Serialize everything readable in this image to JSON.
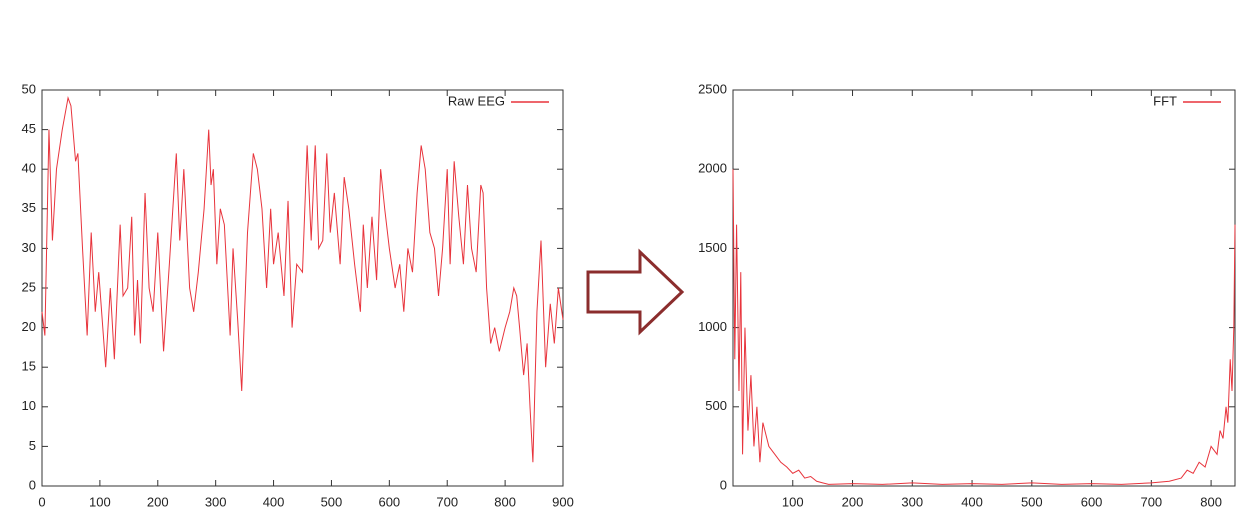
{
  "chart_data": [
    {
      "type": "line",
      "x": [
        0,
        5,
        12,
        18,
        25,
        35,
        45,
        50,
        58,
        62,
        70,
        78,
        85,
        92,
        98,
        105,
        110,
        118,
        125,
        135,
        140,
        148,
        155,
        160,
        165,
        170,
        178,
        185,
        192,
        200,
        210,
        220,
        232,
        238,
        245,
        255,
        262,
        270,
        280,
        288,
        292,
        296,
        302,
        308,
        315,
        325,
        330,
        338,
        345,
        355,
        365,
        372,
        380,
        388,
        395,
        400,
        408,
        418,
        425,
        432,
        440,
        450,
        458,
        465,
        472,
        478,
        485,
        492,
        498,
        505,
        515,
        522,
        530,
        540,
        550,
        555,
        562,
        570,
        578,
        585,
        592,
        600,
        610,
        618,
        625,
        632,
        640,
        648,
        655,
        662,
        670,
        678,
        685,
        692,
        700,
        705,
        712,
        720,
        728,
        735,
        742,
        750,
        758,
        762,
        768,
        775,
        782,
        790,
        800,
        808,
        815,
        820,
        825,
        832,
        838,
        843,
        848,
        855,
        862,
        870,
        878,
        885,
        892,
        900
      ],
      "series": [
        {
          "name": "Raw EEG",
          "color": "#e8343c",
          "values": [
            22,
            19,
            45,
            31,
            40,
            45,
            49,
            48,
            41,
            42,
            30,
            19,
            32,
            22,
            27,
            20,
            15,
            25,
            16,
            33,
            24,
            25,
            34,
            19,
            26,
            18,
            37,
            25,
            22,
            32,
            17,
            28,
            42,
            31,
            40,
            25,
            22,
            27,
            35,
            45,
            38,
            40,
            28,
            35,
            33,
            19,
            30,
            21,
            12,
            32,
            42,
            40,
            35,
            25,
            35,
            28,
            32,
            24,
            36,
            20,
            28,
            27,
            43,
            31,
            43,
            30,
            31,
            42,
            32,
            37,
            28,
            39,
            35,
            28,
            22,
            33,
            25,
            34,
            26,
            40,
            35,
            30,
            25,
            28,
            22,
            30,
            27,
            37,
            43,
            40,
            32,
            30,
            24,
            30,
            40,
            28,
            41,
            34,
            28,
            38,
            30,
            27,
            38,
            37,
            25,
            18,
            20,
            17,
            20,
            22,
            25,
            24,
            20,
            14,
            18,
            10,
            3,
            22,
            31,
            15,
            23,
            18,
            25,
            21
          ]
        }
      ],
      "xlim": [
        0,
        900
      ],
      "xticks": [
        0,
        100,
        200,
        300,
        400,
        500,
        600,
        700,
        800,
        900
      ],
      "ylim": [
        0,
        50
      ],
      "yticks": [
        0,
        5,
        10,
        15,
        20,
        25,
        30,
        35,
        40,
        45,
        50
      ],
      "legend": "top-right"
    },
    {
      "type": "line",
      "x": [
        0,
        3,
        6,
        10,
        13,
        16,
        20,
        25,
        30,
        35,
        40,
        45,
        50,
        60,
        70,
        80,
        90,
        100,
        110,
        120,
        130,
        140,
        150,
        160,
        200,
        250,
        300,
        350,
        400,
        450,
        500,
        550,
        600,
        650,
        700,
        730,
        750,
        760,
        770,
        780,
        790,
        800,
        810,
        815,
        820,
        825,
        828,
        832,
        835,
        838,
        840
      ],
      "series": [
        {
          "name": "FFT",
          "color": "#e8343c",
          "values": [
            2000,
            800,
            1650,
            600,
            1350,
            200,
            1000,
            350,
            700,
            250,
            500,
            150,
            400,
            250,
            200,
            150,
            120,
            80,
            100,
            50,
            60,
            30,
            20,
            10,
            15,
            10,
            20,
            10,
            15,
            10,
            20,
            10,
            15,
            10,
            20,
            30,
            50,
            100,
            80,
            150,
            120,
            250,
            200,
            350,
            300,
            500,
            400,
            800,
            600,
            1000,
            1650
          ]
        }
      ],
      "xlim": [
        0,
        840
      ],
      "xticks": [
        100,
        200,
        300,
        400,
        500,
        600,
        700,
        800
      ],
      "ylim": [
        0,
        2500
      ],
      "yticks": [
        0,
        500,
        1000,
        1500,
        2000,
        2500
      ],
      "legend": "top-right"
    }
  ]
}
